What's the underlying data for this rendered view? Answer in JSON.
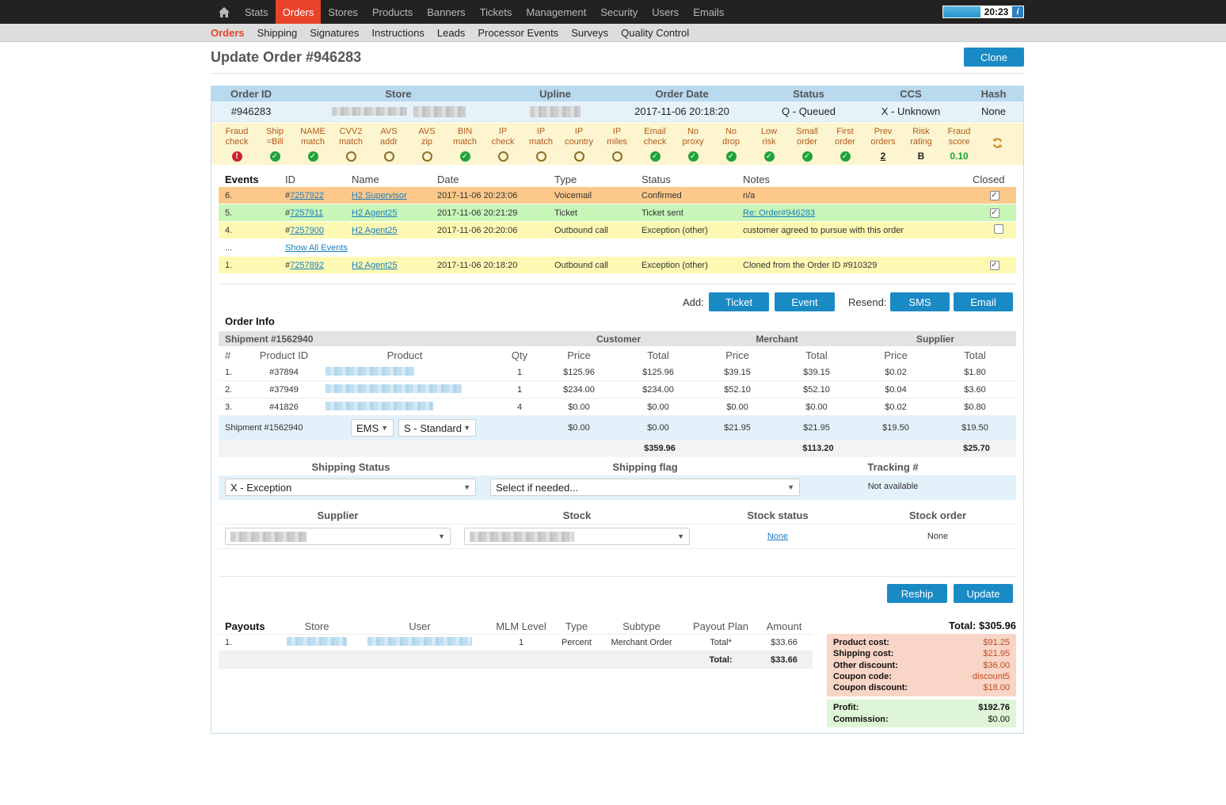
{
  "topnav": {
    "items": [
      "Stats",
      "Orders",
      "Stores",
      "Products",
      "Banners",
      "Tickets",
      "Management",
      "Security",
      "Users",
      "Emails"
    ],
    "active": "Orders",
    "time": "20:23",
    "info": "i"
  },
  "subnav": {
    "items": [
      "Orders",
      "Shipping",
      "Signatures",
      "Instructions",
      "Leads",
      "Processor Events",
      "Surveys",
      "Quality Control"
    ],
    "active": "Orders"
  },
  "page": {
    "title": "Update Order #946283",
    "clone_label": "Clone"
  },
  "header": {
    "columns": [
      "Order ID",
      "Store",
      "Upline",
      "Order Date",
      "Status",
      "CCS",
      "Hash"
    ],
    "order_id": "#946283",
    "order_date": "2017-11-06 20:18:20",
    "status": "Q - Queued",
    "ccs": "X - Unknown",
    "hash": "None"
  },
  "checks": [
    {
      "l1": "Fraud",
      "l2": "check",
      "state": "bad"
    },
    {
      "l1": "Ship",
      "l2": "=Bill",
      "state": "ok"
    },
    {
      "l1": "NAME",
      "l2": "match",
      "state": "ok"
    },
    {
      "l1": "CVV2",
      "l2": "match",
      "state": "empty"
    },
    {
      "l1": "AVS",
      "l2": "addr",
      "state": "empty"
    },
    {
      "l1": "AVS",
      "l2": "zip",
      "state": "empty"
    },
    {
      "l1": "BIN",
      "l2": "match",
      "state": "ok"
    },
    {
      "l1": "IP",
      "l2": "check",
      "state": "empty"
    },
    {
      "l1": "IP",
      "l2": "match",
      "state": "empty"
    },
    {
      "l1": "IP",
      "l2": "country",
      "state": "empty"
    },
    {
      "l1": "IP",
      "l2": "miles",
      "state": "empty"
    },
    {
      "l1": "Email",
      "l2": "check",
      "state": "ok"
    },
    {
      "l1": "No",
      "l2": "proxy",
      "state": "ok"
    },
    {
      "l1": "No",
      "l2": "drop",
      "state": "ok"
    },
    {
      "l1": "Low",
      "l2": "risk",
      "state": "ok"
    },
    {
      "l1": "Small",
      "l2": "order",
      "state": "ok"
    },
    {
      "l1": "First",
      "l2": "order",
      "state": "ok"
    },
    {
      "l1": "Prev",
      "l2": "orders",
      "state": "text",
      "value": "2"
    },
    {
      "l1": "Risk",
      "l2": "rating",
      "state": "text",
      "value": "B"
    },
    {
      "l1": "Fraud",
      "l2": "score",
      "state": "text",
      "value": "0.10"
    }
  ],
  "events": {
    "title": "Events",
    "columns": [
      "ID",
      "Name",
      "Date",
      "Type",
      "Status",
      "Notes",
      "Closed"
    ],
    "show_all": "Show All Events",
    "ellipsis": "...",
    "rows": [
      {
        "n": "6.",
        "id": "7257922",
        "name": "H2 Supervisor",
        "date": "2017-11-06 20:23:06",
        "type": "Voicemail",
        "status": "Confirmed",
        "notes": "n/a",
        "closed": true,
        "color": "orange"
      },
      {
        "n": "5.",
        "id": "7257911",
        "name": "H2 Agent25",
        "date": "2017-11-06 20:21:29",
        "type": "Ticket",
        "status": "Ticket sent",
        "notes": "Re: Order#946283",
        "notes_link": true,
        "closed": true,
        "color": "green"
      },
      {
        "n": "4.",
        "id": "7257900",
        "name": "H2 Agent25",
        "date": "2017-11-06 20:20:06",
        "type": "Outbound call",
        "status": "Exception (other)",
        "notes": "customer agreed to pursue with this order",
        "closed": false,
        "color": "yellow"
      },
      {
        "n": "1.",
        "id": "7257892",
        "name": "H2 Agent25",
        "date": "2017-11-06 20:18:20",
        "type": "Outbound call",
        "status": "Exception (other)",
        "notes": "Cloned from the Order ID #910329",
        "closed": true,
        "color": "yellow"
      }
    ]
  },
  "actions": {
    "add_label": "Add:",
    "ticket": "Ticket",
    "event": "Event",
    "resend_label": "Resend:",
    "sms": "SMS",
    "email": "Email"
  },
  "order_info": {
    "title": "Order Info",
    "shipment_title": "Shipment #1562940",
    "groups": [
      "Customer",
      "Merchant",
      "Supplier"
    ],
    "columns": [
      "#",
      "Product ID",
      "Product",
      "Qty",
      "Price",
      "Total",
      "Price",
      "Total",
      "Price",
      "Total"
    ],
    "rows": [
      {
        "n": "1.",
        "pid": "#37894",
        "qty": "1",
        "cp": "$125.96",
        "ct": "$125.96",
        "mp": "$39.15",
        "mt": "$39.15",
        "sp": "$0.02",
        "st": "$1.80"
      },
      {
        "n": "2.",
        "pid": "#37949",
        "qty": "1",
        "cp": "$234.00",
        "ct": "$234.00",
        "mp": "$52.10",
        "mt": "$52.10",
        "sp": "$0.04",
        "st": "$3.60"
      },
      {
        "n": "3.",
        "pid": "#41826",
        "qty": "4",
        "cp": "$0.00",
        "ct": "$0.00",
        "mp": "$0.00",
        "mt": "$0.00",
        "sp": "$0.02",
        "st": "$0.80"
      }
    ],
    "ship_row": {
      "label": "Shipment #1562940",
      "carrier": "EMS",
      "method": "S - Standard",
      "cp": "$0.00",
      "ct": "$0.00",
      "mp": "$21.95",
      "mt": "$21.95",
      "sp": "$19.50",
      "st": "$19.50"
    },
    "totals": {
      "customer": "$359.96",
      "merchant": "$113.20",
      "supplier": "$25.70"
    }
  },
  "shipping": {
    "status_label": "Shipping Status",
    "flag_label": "Shipping flag",
    "tracking_label": "Tracking #",
    "status_value": "X - Exception",
    "flag_placeholder": "Select if needed...",
    "tracking_value": "Not available"
  },
  "supply": {
    "supplier_label": "Supplier",
    "stock_label": "Stock",
    "stock_status_label": "Stock status",
    "stock_order_label": "Stock order",
    "stock_status_value": "None",
    "stock_order_value": "None"
  },
  "buttons": {
    "reship": "Reship",
    "update": "Update"
  },
  "payouts": {
    "title": "Payouts",
    "columns": [
      "Store",
      "User",
      "MLM Level",
      "Type",
      "Subtype",
      "Payout Plan",
      "Amount"
    ],
    "rows": [
      {
        "n": "1.",
        "level": "1",
        "type": "Percent",
        "subtype": "Merchant Order",
        "plan": "Total*",
        "amount": "$33.66"
      }
    ],
    "total_label": "Total:",
    "total_value": "$33.66"
  },
  "summary": {
    "total": "Total: $305.96",
    "costs": [
      {
        "k": "Product cost:",
        "v": "$91.25"
      },
      {
        "k": "Shipping cost:",
        "v": "$21.95"
      },
      {
        "k": "Other discount:",
        "v": "$36.00"
      },
      {
        "k": "Coupon code:",
        "v": "discount5"
      },
      {
        "k": "Coupon discount:",
        "v": "$18.00"
      }
    ],
    "profit_label": "Profit:",
    "profit_value": "$192.76",
    "commission_label": "Commission:",
    "commission_value": "$0.00"
  }
}
